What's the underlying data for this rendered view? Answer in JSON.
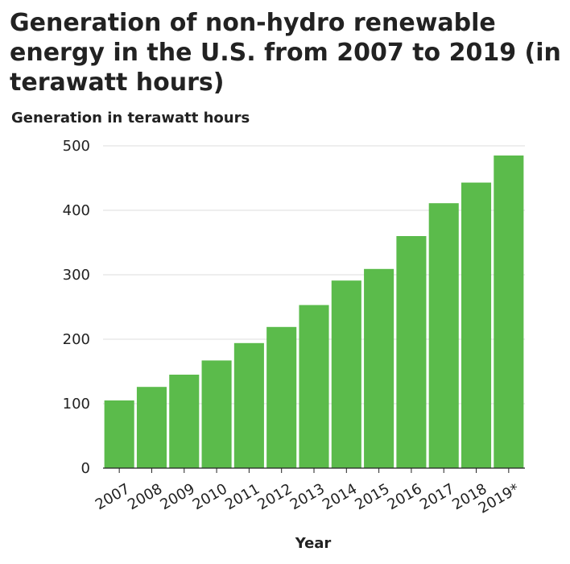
{
  "chart_data": {
    "type": "bar",
    "title": "Generation of non-hydro renewable energy in the U.S. from 2007 to 2019 (in terawatt hours)",
    "xlabel": "Year",
    "ylabel": "Generation in terawatt hours",
    "categories": [
      "2007",
      "2008",
      "2009",
      "2010",
      "2011",
      "2012",
      "2013",
      "2014",
      "2015",
      "2016",
      "2017",
      "2018",
      "2019*"
    ],
    "values": [
      105,
      126,
      145,
      167,
      194,
      219,
      253,
      291,
      309,
      360,
      411,
      443,
      485
    ],
    "ylim": [
      0,
      500
    ],
    "yticks": [
      0,
      100,
      200,
      300,
      400,
      500
    ],
    "grid": true,
    "bar_color": "#5bbb4b",
    "grid_color": "#dddddd",
    "axis_color": "#222222"
  }
}
